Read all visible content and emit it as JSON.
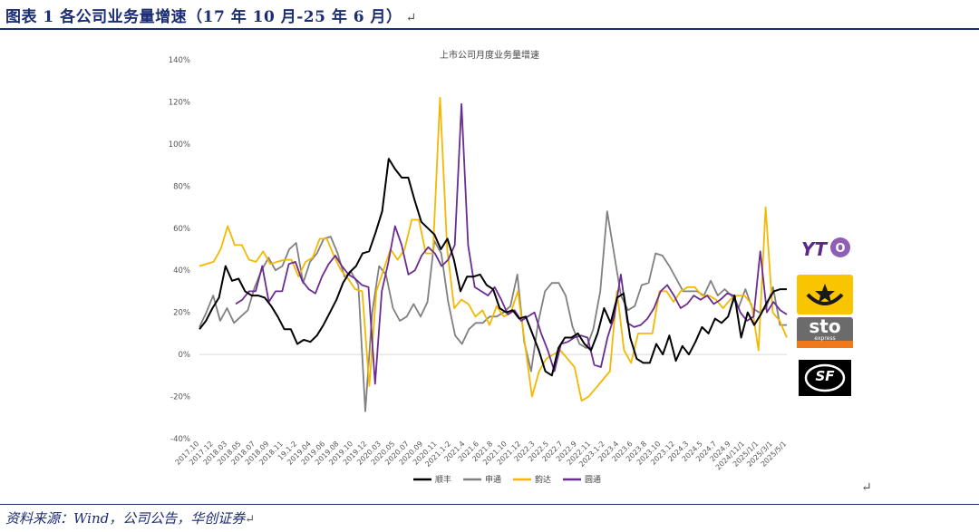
{
  "figure_title": "图表 1 各公司业务量增速（17 年 10 月-25 年 6 月）",
  "return_mark": "↵",
  "source_text": "资料来源：Wind，公司公告，华创证券",
  "logos": {
    "yto": "YTO",
    "sto": "sto",
    "sto_sub": "express",
    "sf": "SF"
  },
  "colors": {
    "shunfeng": "#000000",
    "shentong": "#808080",
    "yunda": "#f5b800",
    "yuantong": "#6b2c91",
    "title_navy": "#1c2d72"
  },
  "chart_data": {
    "type": "line",
    "title": "上市公司月度业务量增速",
    "ylim": [
      -0.4,
      1.4
    ],
    "yticks": [
      "140%",
      "120%",
      "100%",
      "80%",
      "60%",
      "40%",
      "20%",
      "0%",
      "-20%",
      "-40%"
    ],
    "ytick_values": [
      1.4,
      1.2,
      1.0,
      0.8,
      0.6,
      0.4,
      0.2,
      0.0,
      -0.2,
      -0.4
    ],
    "xtick_labels": [
      "2017.10",
      "2017.12",
      "2018.03",
      "2018.05",
      "2018.07",
      "2018.09",
      "2018.11",
      "19.1-2",
      "2019.04",
      "2019.06",
      "2019.08",
      "2019.10",
      "2019.12",
      "2020.03",
      "2020.05",
      "2020.07",
      "2020.09",
      "2020.11",
      "2021.1-2",
      "2021.4",
      "2021.6",
      "2021.8",
      "2021.10",
      "2021.12",
      "2022.3",
      "2022.5",
      "2022.7",
      "2022.9",
      "2022.11",
      "2023.1-2",
      "2023.4",
      "2023.6",
      "2023.8",
      "2023.10",
      "2023.12",
      "2024.3",
      "2024.5",
      "2024.7",
      "2024.9",
      "2024/11/1",
      "2025/1/1",
      "2025/3/1",
      "2025/5/1"
    ],
    "grid": false,
    "legend": "bottom",
    "series": [
      {
        "name": "顺丰",
        "color": "#000000",
        "values": [
          0.12,
          0.16,
          0.22,
          0.27,
          0.42,
          0.35,
          0.36,
          0.3,
          0.28,
          0.28,
          0.27,
          0.23,
          0.18,
          0.12,
          0.12,
          0.05,
          0.07,
          0.06,
          0.09,
          0.14,
          0.2,
          0.26,
          0.34,
          0.39,
          0.42,
          0.48,
          0.49,
          0.58,
          0.68,
          0.93,
          0.88,
          0.84,
          0.84,
          0.73,
          0.63,
          0.6,
          0.57,
          0.5,
          0.55,
          0.45,
          0.3,
          0.37,
          0.37,
          0.38,
          0.33,
          0.31,
          0.22,
          0.2,
          0.21,
          0.17,
          0.18,
          0.1,
          0.02,
          -0.08,
          -0.1,
          0.03,
          0.08,
          0.08,
          0.1,
          0.05,
          0.02,
          0.1,
          0.22,
          0.15,
          0.27,
          0.29,
          0.08,
          -0.02,
          -0.04,
          -0.04,
          0.05,
          0.0,
          0.09,
          -0.03,
          0.04,
          0.0,
          0.06,
          0.13,
          0.1,
          0.17,
          0.15,
          0.18,
          0.28,
          0.08,
          0.2,
          0.14,
          0.19,
          0.25,
          0.3,
          0.31,
          0.31
        ]
      },
      {
        "name": "申通",
        "color": "#808080",
        "values": [
          0.13,
          0.2,
          0.28,
          0.16,
          0.22,
          0.15,
          0.18,
          0.21,
          0.32,
          0.4,
          0.46,
          0.4,
          0.42,
          0.5,
          0.53,
          0.34,
          0.44,
          0.48,
          0.55,
          0.56,
          0.48,
          0.37,
          0.39,
          0.33,
          -0.27,
          0.2,
          0.42,
          0.38,
          0.22,
          0.16,
          0.18,
          0.24,
          0.18,
          0.25,
          0.54,
          0.48,
          0.25,
          0.09,
          0.05,
          0.12,
          0.15,
          0.15,
          0.18,
          0.18,
          0.2,
          0.23,
          0.38,
          0.06,
          -0.08,
          0.15,
          0.3,
          0.34,
          0.34,
          0.28,
          0.13,
          0.05,
          0.03,
          0.12,
          0.3,
          0.68,
          0.48,
          0.28,
          0.21,
          0.23,
          0.33,
          0.34,
          0.48,
          0.47,
          0.42,
          0.36,
          0.3,
          0.3,
          0.3,
          0.28,
          0.35,
          0.28,
          0.31,
          0.28,
          0.22,
          0.31,
          0.22,
          0.2,
          0.22,
          0.32,
          0.14,
          0.14
        ]
      },
      {
        "name": "韵达",
        "color": "#f5b800",
        "values": [
          0.42,
          0.43,
          0.44,
          0.5,
          0.61,
          0.52,
          0.52,
          0.45,
          0.44,
          0.49,
          0.43,
          0.44,
          0.45,
          0.45,
          0.37,
          0.44,
          0.46,
          0.55,
          0.55,
          0.47,
          0.4,
          0.36,
          0.31,
          0.3,
          -0.15,
          0.3,
          0.4,
          0.5,
          0.45,
          0.5,
          0.64,
          0.64,
          0.48,
          0.48,
          1.22,
          0.5,
          0.22,
          0.26,
          0.24,
          0.18,
          0.21,
          0.14,
          0.23,
          0.18,
          0.2,
          0.3,
          0.05,
          -0.2,
          -0.08,
          -0.02,
          0.0,
          0.02,
          -0.02,
          -0.06,
          -0.22,
          -0.2,
          -0.16,
          -0.12,
          -0.08,
          0.3,
          0.02,
          -0.04,
          0.1,
          0.1,
          0.1,
          0.3,
          0.3,
          0.25,
          0.3,
          0.32,
          0.32,
          0.28,
          0.28,
          0.26,
          0.22,
          0.26,
          0.28,
          0.28,
          0.24,
          0.02,
          0.7,
          0.2,
          0.16,
          0.08
        ]
      },
      {
        "name": "圆通",
        "color": "#6b2c91",
        "values": [
          0.24,
          0.26,
          0.3,
          0.3,
          0.42,
          0.25,
          0.3,
          0.3,
          0.43,
          0.44,
          0.35,
          0.31,
          0.29,
          0.37,
          0.43,
          0.47,
          0.42,
          0.38,
          0.36,
          0.33,
          0.32,
          -0.14,
          0.3,
          0.44,
          0.61,
          0.52,
          0.38,
          0.4,
          0.47,
          0.51,
          0.48,
          0.42,
          0.45,
          0.52,
          1.19,
          0.52,
          0.32,
          0.3,
          0.28,
          0.32,
          0.26,
          0.19,
          0.21,
          0.16,
          0.18,
          0.2,
          0.1,
          0.02,
          -0.08,
          0.05,
          0.06,
          0.08,
          0.09,
          0.08,
          -0.05,
          -0.06,
          0.08,
          0.18,
          0.38,
          0.15,
          0.13,
          0.14,
          0.17,
          0.22,
          0.3,
          0.33,
          0.28,
          0.22,
          0.24,
          0.28,
          0.26,
          0.28,
          0.24,
          0.26,
          0.29,
          0.28,
          0.2,
          0.16,
          0.18,
          0.49,
          0.2,
          0.25,
          0.21,
          0.19
        ]
      }
    ]
  }
}
